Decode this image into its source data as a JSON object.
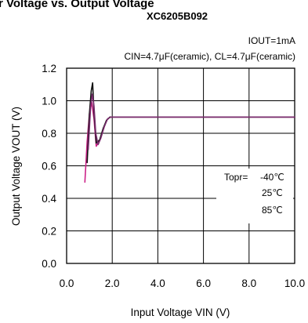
{
  "header": {
    "title_partial": "r Voltage vs. Output Voltage",
    "part_number": "XC6205B092"
  },
  "chart_data": {
    "type": "line",
    "title": "XC6205B092",
    "conditions": [
      "IOUT=1mA",
      "CIN=4.7μF(ceramic), CL=4.7μF(ceramic)"
    ],
    "xlabel": "Input Voltage VIN (V)",
    "ylabel": "Output Voltage VOUT (V)",
    "xlim": [
      0.0,
      10.0
    ],
    "ylim": [
      0.0,
      1.2
    ],
    "x_ticks": [
      "0.0",
      "2.0",
      "4.0",
      "6.0",
      "8.0",
      "10.0"
    ],
    "y_ticks": [
      "0.0",
      "0.2",
      "0.4",
      "0.6",
      "0.8",
      "1.0",
      "1.2"
    ],
    "grid": true,
    "legend": {
      "title": "Topr=",
      "placement": "right",
      "entries": [
        "-40℃",
        "25℃",
        "85℃"
      ]
    },
    "series": [
      {
        "name": "-40℃",
        "color": "#cc2288",
        "x": [
          0.8,
          0.9,
          1.0,
          1.1,
          1.2,
          1.3,
          1.45,
          1.6,
          1.75,
          1.9,
          2.2,
          5.0,
          10.0
        ],
        "y": [
          0.5,
          0.75,
          0.92,
          0.99,
          0.89,
          0.72,
          0.76,
          0.82,
          0.88,
          0.9,
          0.9,
          0.9,
          0.9
        ]
      },
      {
        "name": "25℃",
        "color": "#111111",
        "x": [
          0.9,
          1.0,
          1.08,
          1.14,
          1.2,
          1.3,
          1.45,
          1.6,
          1.75,
          1.9,
          2.2,
          5.0,
          10.0
        ],
        "y": [
          0.62,
          0.92,
          1.06,
          1.11,
          0.93,
          0.74,
          0.76,
          0.83,
          0.88,
          0.9,
          0.9,
          0.9,
          0.9
        ]
      },
      {
        "name": "85℃",
        "color": "#7a2c6e",
        "x": [
          0.95,
          1.05,
          1.12,
          1.2,
          1.28,
          1.38,
          1.5,
          1.65,
          1.8,
          1.95,
          2.2,
          5.0,
          10.0
        ],
        "y": [
          0.7,
          0.96,
          1.04,
          0.97,
          0.8,
          0.73,
          0.77,
          0.84,
          0.89,
          0.9,
          0.9,
          0.9,
          0.9
        ]
      }
    ]
  }
}
